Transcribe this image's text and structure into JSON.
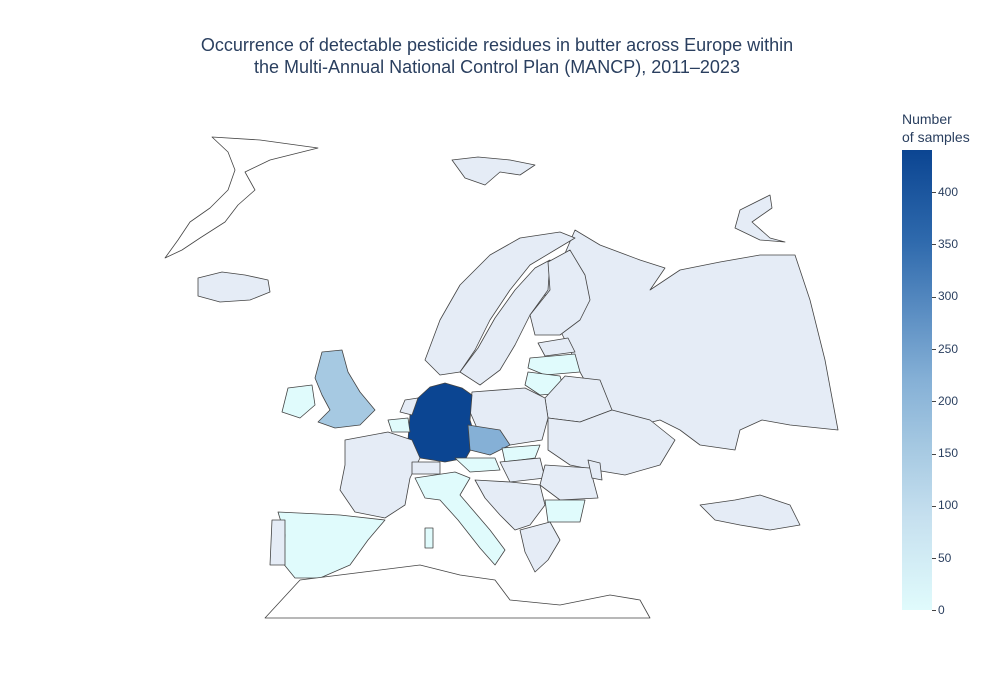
{
  "figure": {
    "title_line1": "Occurrence of detectable pesticide residues in butter across Europe within",
    "title_line2": "the Multi-Annual National Control Plan (MANCP), 2011–2023"
  },
  "colorbar": {
    "title_line1": "Number",
    "title_line2": "of samples",
    "ticks": [
      0,
      50,
      100,
      150,
      200,
      250,
      300,
      350,
      400
    ],
    "range": [
      0,
      440
    ],
    "colorscale": [
      "#e0fbfc",
      "#c6e0ef",
      "#a6c9e2",
      "#85b0d6",
      "#5a8dc2",
      "#2f6aad",
      "#0b4592"
    ]
  },
  "map_colors": {
    "no_data_fill": "#e5ecf6",
    "border": "#444444",
    "background": "#ffffff"
  },
  "chart_data": {
    "type": "choropleth",
    "regions": [
      {
        "name": "Germany",
        "value": 440
      },
      {
        "name": "Czechia",
        "value": 180
      },
      {
        "name": "United Kingdom",
        "value": 130
      },
      {
        "name": "Ireland",
        "value": 20
      },
      {
        "name": "Spain",
        "value": 10
      },
      {
        "name": "Italy",
        "value": 15
      },
      {
        "name": "Austria",
        "value": 10
      },
      {
        "name": "Belgium",
        "value": 20
      },
      {
        "name": "Slovakia",
        "value": 10
      },
      {
        "name": "Lithuania",
        "value": 5
      },
      {
        "name": "Latvia",
        "value": 5
      },
      {
        "name": "Bulgaria",
        "value": 15
      }
    ]
  }
}
